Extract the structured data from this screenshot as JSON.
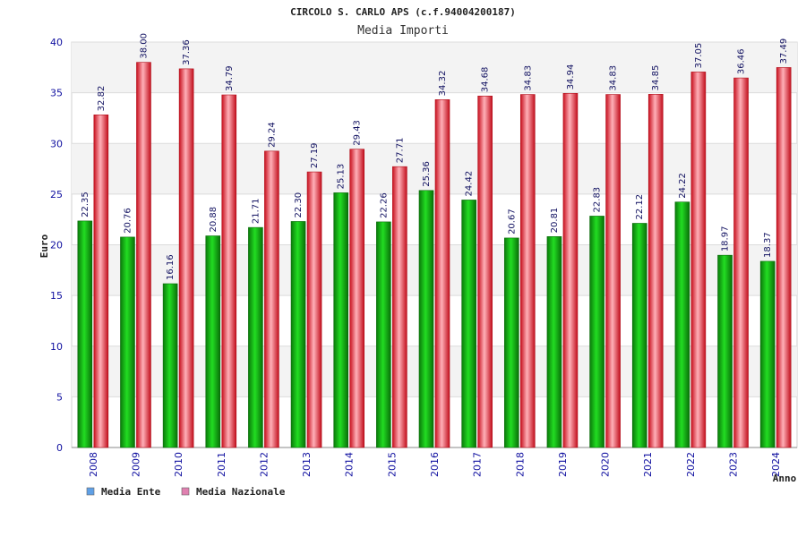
{
  "chart_data": {
    "type": "bar",
    "title": "CIRCOLO S. CARLO APS (c.f.94004200187)",
    "subtitle": "Media Importi",
    "xlabel": "Anno",
    "ylabel": "Euro",
    "ylim": [
      0,
      40
    ],
    "yticks": [
      0,
      5,
      10,
      15,
      20,
      25,
      30,
      35,
      40
    ],
    "categories": [
      "2008",
      "2009",
      "2010",
      "2011",
      "2012",
      "2013",
      "2014",
      "2015",
      "2016",
      "2017",
      "2018",
      "2019",
      "2020",
      "2021",
      "2022",
      "2023",
      "2024"
    ],
    "series": [
      {
        "name": "Media Ente",
        "legend_color": "#5fa0e6",
        "bar_color": "#12b012",
        "values": [
          22.35,
          20.76,
          16.16,
          20.88,
          21.71,
          22.3,
          25.13,
          22.26,
          25.36,
          24.42,
          20.67,
          20.81,
          22.83,
          22.12,
          24.22,
          18.97,
          18.37
        ],
        "labels": [
          "22.35",
          "20.76",
          "16.16",
          "20.88",
          "21.71",
          "22.30",
          "25.13",
          "22.26",
          "25.36",
          "24.42",
          "20.67",
          "20.81",
          "22.83",
          "22.12",
          "24.22",
          "18.97",
          "18.37"
        ]
      },
      {
        "name": "Media Nazionale",
        "legend_color": "#e080b0",
        "bar_color": "#e81c2c",
        "values": [
          32.82,
          38.0,
          37.36,
          34.79,
          29.24,
          27.19,
          29.43,
          27.71,
          34.32,
          34.68,
          34.83,
          34.94,
          34.83,
          34.85,
          37.05,
          36.46,
          37.49
        ],
        "labels": [
          "32.82",
          "38.00",
          "37.36",
          "34.79",
          "29.24",
          "27.19",
          "29.43",
          "27.71",
          "34.32",
          "34.68",
          "34.83",
          "34.94",
          "34.83",
          "34.85",
          "37.05",
          "36.46",
          "37.49"
        ]
      }
    ],
    "grid": true,
    "legend_position": "bottom-left"
  }
}
